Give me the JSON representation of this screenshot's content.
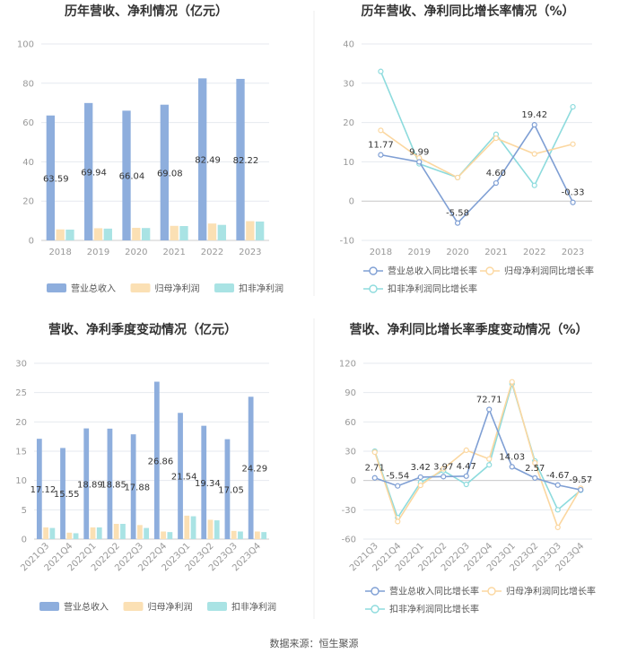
{
  "source": "数据来源：恒生聚源",
  "colors": {
    "revenue": "#8eaedd",
    "netprofit": "#fbe0b4",
    "deducted": "#a9e3e4",
    "rev_line": "#7f9fd4",
    "np_line": "#fbd7a0",
    "de_line": "#8ddbdd",
    "grid": "#e6e9ef",
    "axis_text": "#999999",
    "label": "#333333",
    "title": "#333333"
  },
  "chart_data": [
    {
      "id": "annual-bar",
      "type": "bar",
      "title": "历年营收、净利情况（亿元）",
      "categories": [
        "2018",
        "2019",
        "2020",
        "2021",
        "2022",
        "2023"
      ],
      "ylim": [
        0,
        100
      ],
      "yticks": [
        0,
        20,
        40,
        60,
        80,
        100
      ],
      "series": [
        {
          "name": "营业总收入",
          "values": [
            63.59,
            69.94,
            66.04,
            69.08,
            82.49,
            82.22
          ],
          "labels": [
            "63.59",
            "69.94",
            "66.04",
            "69.08",
            "82.49",
            "82.22"
          ]
        },
        {
          "name": "归母净利润",
          "values": [
            5.6,
            6.2,
            6.4,
            7.4,
            8.6,
            9.8
          ]
        },
        {
          "name": "扣非净利润",
          "values": [
            5.5,
            6.0,
            6.3,
            7.3,
            7.9,
            9.6
          ]
        }
      ],
      "legend": "bottom"
    },
    {
      "id": "annual-line",
      "type": "line",
      "title": "历年营收、净利同比增长率情况（%）",
      "categories": [
        "2018",
        "2019",
        "2020",
        "2021",
        "2022",
        "2023"
      ],
      "ylim": [
        -10,
        40
      ],
      "yticks": [
        -10,
        0,
        10,
        20,
        30,
        40
      ],
      "series": [
        {
          "name": "营业总收入同比增长率",
          "values": [
            11.77,
            9.99,
            -5.58,
            4.6,
            19.42,
            -0.33
          ],
          "labels": [
            "11.77",
            "9.99",
            "-5.58",
            "4.60",
            "19.42",
            "-0.33"
          ]
        },
        {
          "name": "归母净利润同比增长率",
          "values": [
            18.0,
            11.0,
            6.0,
            16.0,
            12.0,
            14.5
          ]
        },
        {
          "name": "扣非净利润同比增长率",
          "values": [
            33.0,
            9.5,
            6.0,
            17.0,
            4.0,
            24.0
          ]
        }
      ],
      "legend": "bottom"
    },
    {
      "id": "quarter-bar",
      "type": "bar",
      "title": "营收、净利季度变动情况（亿元）",
      "categories": [
        "2021Q3",
        "2021Q4",
        "2022Q1",
        "2022Q2",
        "2022Q3",
        "2022Q4",
        "2023Q1",
        "2023Q2",
        "2023Q3",
        "2023Q4"
      ],
      "ylim": [
        0,
        30
      ],
      "yticks": [
        0,
        5,
        10,
        15,
        20,
        25,
        30
      ],
      "series": [
        {
          "name": "营业总收入",
          "values": [
            17.12,
            15.55,
            18.89,
            18.85,
            17.88,
            26.86,
            21.54,
            19.34,
            17.05,
            24.29
          ],
          "labels": [
            "17.12",
            "15.55",
            "18.89",
            "18.85",
            "17.88",
            "26.86",
            "21.54",
            "19.34",
            "17.05",
            "24.29"
          ]
        },
        {
          "name": "归母净利润",
          "values": [
            2.0,
            1.1,
            2.0,
            2.6,
            2.4,
            1.3,
            4.0,
            3.3,
            1.4,
            1.3
          ]
        },
        {
          "name": "扣非净利润",
          "values": [
            1.9,
            1.0,
            2.0,
            2.6,
            1.9,
            1.2,
            3.9,
            3.2,
            1.3,
            1.2
          ]
        }
      ],
      "legend": "bottom"
    },
    {
      "id": "quarter-line",
      "type": "line",
      "title": "营收、净利同比增长率季度变动情况（%）",
      "categories": [
        "2021Q3",
        "2021Q4",
        "2022Q1",
        "2022Q2",
        "2022Q3",
        "2022Q4",
        "2023Q1",
        "2023Q2",
        "2023Q3",
        "2023Q4"
      ],
      "ylim": [
        -60,
        120
      ],
      "yticks": [
        -60,
        -30,
        0,
        30,
        60,
        90,
        120
      ],
      "series": [
        {
          "name": "营业总收入同比增长率",
          "values": [
            2.71,
            -5.54,
            3.42,
            3.97,
            4.47,
            72.71,
            14.03,
            2.57,
            -4.67,
            -9.57
          ],
          "labels": [
            "2.71",
            "-5.54",
            "3.42",
            "3.97",
            "4.47",
            "72.71",
            "14.03",
            "2.57",
            "-4.67",
            "-9.57"
          ]
        },
        {
          "name": "归母净利润同比增长率",
          "values": [
            29.0,
            -42.0,
            -5.0,
            12.0,
            31.0,
            22.0,
            101.0,
            18.0,
            -48.0,
            -8.0
          ]
        },
        {
          "name": "扣非净利润同比增长率",
          "values": [
            30.0,
            -38.0,
            -2.0,
            10.0,
            -4.0,
            16.0,
            99.0,
            20.0,
            -30.0,
            -10.0
          ]
        }
      ],
      "legend": "bottom"
    }
  ]
}
